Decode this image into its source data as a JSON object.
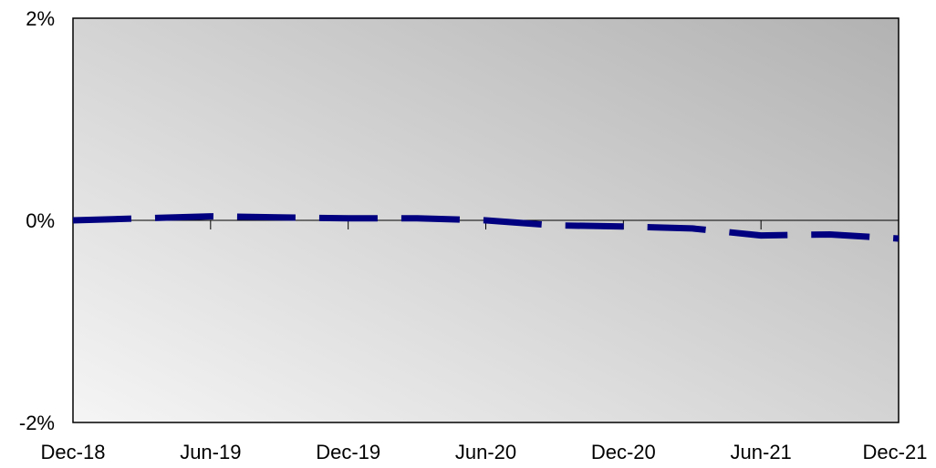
{
  "chart_data": {
    "type": "line",
    "title": "",
    "xlabel": "",
    "ylabel": "",
    "x_tick_labels": [
      "Dec-18",
      "Jun-19",
      "Dec-19",
      "Jun-20",
      "Dec-20",
      "Jun-21",
      "Dec-21"
    ],
    "y_tick_labels": [
      "2%",
      "0%",
      "-2%"
    ],
    "y_ticks": [
      2,
      0,
      -2
    ],
    "ylim": [
      -2,
      2
    ],
    "grid": false,
    "legend": "none",
    "series": [
      {
        "color": "#000080",
        "style": "dashed",
        "x": [
          "Dec-18",
          "Mar-19",
          "Jun-19",
          "Sep-19",
          "Dec-19",
          "Mar-20",
          "Jun-20",
          "Sep-20",
          "Dec-20",
          "Mar-21",
          "Jun-21",
          "Sep-21",
          "Dec-21"
        ],
        "values": [
          0.0,
          0.02,
          0.04,
          0.03,
          0.02,
          0.02,
          0.0,
          -0.05,
          -0.06,
          -0.08,
          -0.15,
          -0.14,
          -0.18
        ]
      }
    ]
  },
  "colors": {
    "plot_gradient_start": "#f5f5f5",
    "plot_gradient_end": "#b2b2b2",
    "line": "#000080"
  }
}
